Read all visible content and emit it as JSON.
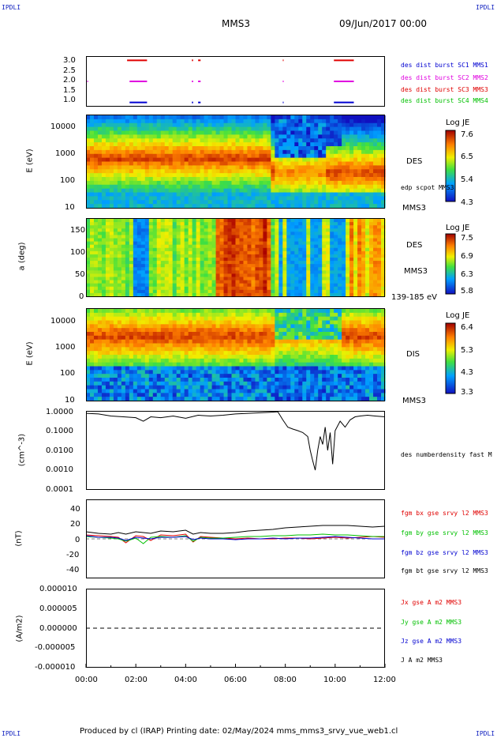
{
  "corners": {
    "tl": "IPDLI",
    "tr": "IPDLI",
    "bl": "IPDLI",
    "br": "IPDLI"
  },
  "header": {
    "title": "MMS3",
    "date": "09/Jun/2017 00:00"
  },
  "footer": {
    "text": "Produced by cl (IRAP)   Printing date: 02/May/2024   mms_mms3_srvy_vue_web1.cl"
  },
  "colors": {
    "red": "#e00000",
    "magenta": "#e000e0",
    "blue": "#0000d0",
    "green": "#00c000",
    "black": "#000000"
  },
  "x_axis": {
    "ticks": [
      "00:00",
      "02:00",
      "04:00",
      "06:00",
      "08:00",
      "10:00",
      "12:00"
    ]
  },
  "chart_data": [
    {
      "type": "scatter",
      "panel": "burst",
      "ylim": [
        0.8,
        3.2
      ],
      "yticks": [
        "3.0",
        "2.5",
        "2.0",
        "1.5",
        "1.0"
      ],
      "xlim_hours": [
        0,
        12
      ],
      "series": [
        {
          "name": "des dist burst SC1 MMS1",
          "color": "#0000d0",
          "y": 1.0,
          "intervals_hours": [
            [
              1.75,
              2.45
            ],
            [
              4.25,
              4.3
            ],
            [
              4.5,
              4.6
            ],
            [
              7.9,
              7.92
            ],
            [
              9.95,
              10.75
            ]
          ]
        },
        {
          "name": "des dist burst SC2 MMS2",
          "color": "#e000e0",
          "y": 2.0,
          "intervals_hours": [
            [
              0.05,
              0.07
            ],
            [
              1.75,
              2.45
            ],
            [
              4.25,
              4.3
            ],
            [
              4.5,
              4.6
            ],
            [
              7.9,
              7.92
            ],
            [
              9.95,
              10.75
            ]
          ]
        },
        {
          "name": "des dist burst SC3 MMS3",
          "color": "#e00000",
          "y": 3.0,
          "intervals_hours": [
            [
              1.65,
              2.45
            ],
            [
              4.25,
              4.3
            ],
            [
              4.5,
              4.6
            ],
            [
              7.9,
              7.92
            ],
            [
              9.95,
              10.75
            ]
          ]
        },
        {
          "name": "des dist burst SC4 MMS4",
          "color": "#00c000",
          "y": 0.0,
          "intervals_hours": []
        }
      ]
    },
    {
      "type": "heatmap",
      "panel": "des_energy",
      "ylabel": "E (eV)",
      "ylog": true,
      "yticks": [
        "10000",
        "1000",
        "100",
        "10"
      ],
      "right_labels": [
        "DES",
        "edp scpot MMS3",
        "MMS3"
      ],
      "colorbar": {
        "title": "Log JE",
        "ticks": [
          "7.6",
          "6.5",
          "5.4",
          "4.3"
        ],
        "range": [
          4.3,
          7.6
        ]
      }
    },
    {
      "type": "heatmap",
      "panel": "des_pitch",
      "ylabel": "a (deg)",
      "yticks": [
        "150",
        "100",
        "50",
        "0"
      ],
      "ylim": [
        0,
        180
      ],
      "right_labels": [
        "DES",
        "MMS3",
        "139-185 eV"
      ],
      "colorbar": {
        "title": "Log JE",
        "ticks": [
          "7.5",
          "6.9",
          "6.3",
          "5.8"
        ],
        "range": [
          5.8,
          7.5
        ]
      }
    },
    {
      "type": "heatmap",
      "panel": "dis_energy",
      "ylabel": "E (eV)",
      "ylog": true,
      "yticks": [
        "10000",
        "1000",
        "100",
        "10"
      ],
      "right_labels": [
        "DIS",
        "MMS3"
      ],
      "colorbar": {
        "title": "Log JE",
        "ticks": [
          "6.4",
          "5.3",
          "4.3",
          "3.3"
        ],
        "range": [
          3.3,
          6.4
        ]
      }
    },
    {
      "type": "line",
      "panel": "density",
      "ylabel": "(cm^-3)",
      "ylog": true,
      "ylim": [
        0.0001,
        1.0
      ],
      "yticks": [
        "1.0000",
        "0.1000",
        "0.0100",
        "0.0010",
        "0.0001"
      ],
      "series": [
        {
          "name": "des numberdensity fast M",
          "color": "#000000",
          "x_hours": [
            0,
            0.5,
            1.0,
            1.5,
            2.0,
            2.3,
            2.6,
            3.0,
            3.5,
            4.0,
            4.5,
            5.0,
            5.5,
            6.0,
            6.5,
            7.0,
            7.4,
            7.7,
            7.9,
            8.1,
            8.3,
            8.5,
            8.7,
            8.9,
            9.0,
            9.1,
            9.2,
            9.3,
            9.4,
            9.5,
            9.6,
            9.7,
            9.8,
            9.9,
            10.0,
            10.2,
            10.4,
            10.6,
            10.8,
            11.0,
            11.3,
            11.6,
            12.0
          ],
          "y": [
            0.75,
            0.7,
            0.55,
            0.5,
            0.45,
            0.3,
            0.5,
            0.45,
            0.55,
            0.42,
            0.6,
            0.55,
            0.6,
            0.7,
            0.75,
            0.8,
            0.85,
            0.9,
            0.35,
            0.15,
            0.12,
            0.1,
            0.08,
            0.05,
            0.01,
            0.003,
            0.001,
            0.01,
            0.05,
            0.02,
            0.15,
            0.01,
            0.08,
            0.002,
            0.1,
            0.3,
            0.15,
            0.35,
            0.5,
            0.55,
            0.6,
            0.55,
            0.5
          ]
        }
      ]
    },
    {
      "type": "line",
      "panel": "magnetic_field",
      "ylabel": "(nT)",
      "ylim": [
        -50,
        50
      ],
      "yticks": [
        "40",
        "20",
        "0",
        "-20",
        "-40"
      ],
      "x_hours": [
        0,
        0.5,
        1.0,
        1.3,
        1.6,
        2.0,
        2.3,
        2.6,
        3.0,
        3.5,
        4.0,
        4.3,
        4.6,
        5.0,
        5.5,
        6.0,
        6.5,
        7.0,
        7.5,
        8.0,
        8.5,
        9.0,
        9.5,
        10.0,
        10.5,
        11.0,
        11.5,
        12.0
      ],
      "series": [
        {
          "name": "fgm bx gse srvy l2 MMS3",
          "color": "#e00000",
          "values": [
            5,
            4,
            3,
            2,
            -5,
            4,
            3,
            -2,
            5,
            4,
            6,
            -4,
            3,
            2,
            1,
            0,
            1,
            0,
            0,
            1,
            1,
            0,
            1,
            2,
            1,
            2,
            3,
            2
          ]
        },
        {
          "name": "fgm by gse srvy l2 MMS3",
          "color": "#00c000",
          "values": [
            3,
            2,
            1,
            0,
            -3,
            1,
            -6,
            2,
            3,
            2,
            4,
            -3,
            2,
            1,
            1,
            2,
            3,
            3,
            4,
            4,
            5,
            5,
            6,
            5,
            5,
            4,
            3,
            3
          ]
        },
        {
          "name": "fgm bz gse srvy l2 MMS3",
          "color": "#0000d0",
          "values": [
            4,
            2,
            2,
            1,
            -2,
            2,
            1,
            0,
            2,
            2,
            3,
            -1,
            1,
            0,
            0,
            -1,
            0,
            0,
            1,
            0,
            1,
            1,
            2,
            3,
            2,
            1,
            0,
            0
          ]
        },
        {
          "name": "fgm bt gse srvy l2 MMS3",
          "color": "#000000",
          "values": [
            9,
            7,
            6,
            8,
            6,
            9,
            8,
            7,
            10,
            9,
            11,
            6,
            8,
            7,
            7,
            8,
            10,
            11,
            12,
            14,
            15,
            16,
            17,
            17,
            17,
            16,
            15,
            16
          ]
        }
      ]
    },
    {
      "type": "line",
      "panel": "current_density",
      "ylabel": "(A/m2)",
      "ylim": [
        -1e-05,
        1e-05
      ],
      "yticks": [
        "0.000010",
        "0.000005",
        "0.000000",
        "-0.000005",
        "-0.000010"
      ],
      "series": [
        {
          "name": "Jx gse A m2 MMS3",
          "color": "#e00000"
        },
        {
          "name": "Jy gse A m2 MMS3",
          "color": "#00c000"
        },
        {
          "name": "Jz gse A m2 MMS3",
          "color": "#0000d0"
        },
        {
          "name": "J A m2 MMS3",
          "color": "#000000"
        }
      ],
      "zero_line": "dashed"
    }
  ]
}
